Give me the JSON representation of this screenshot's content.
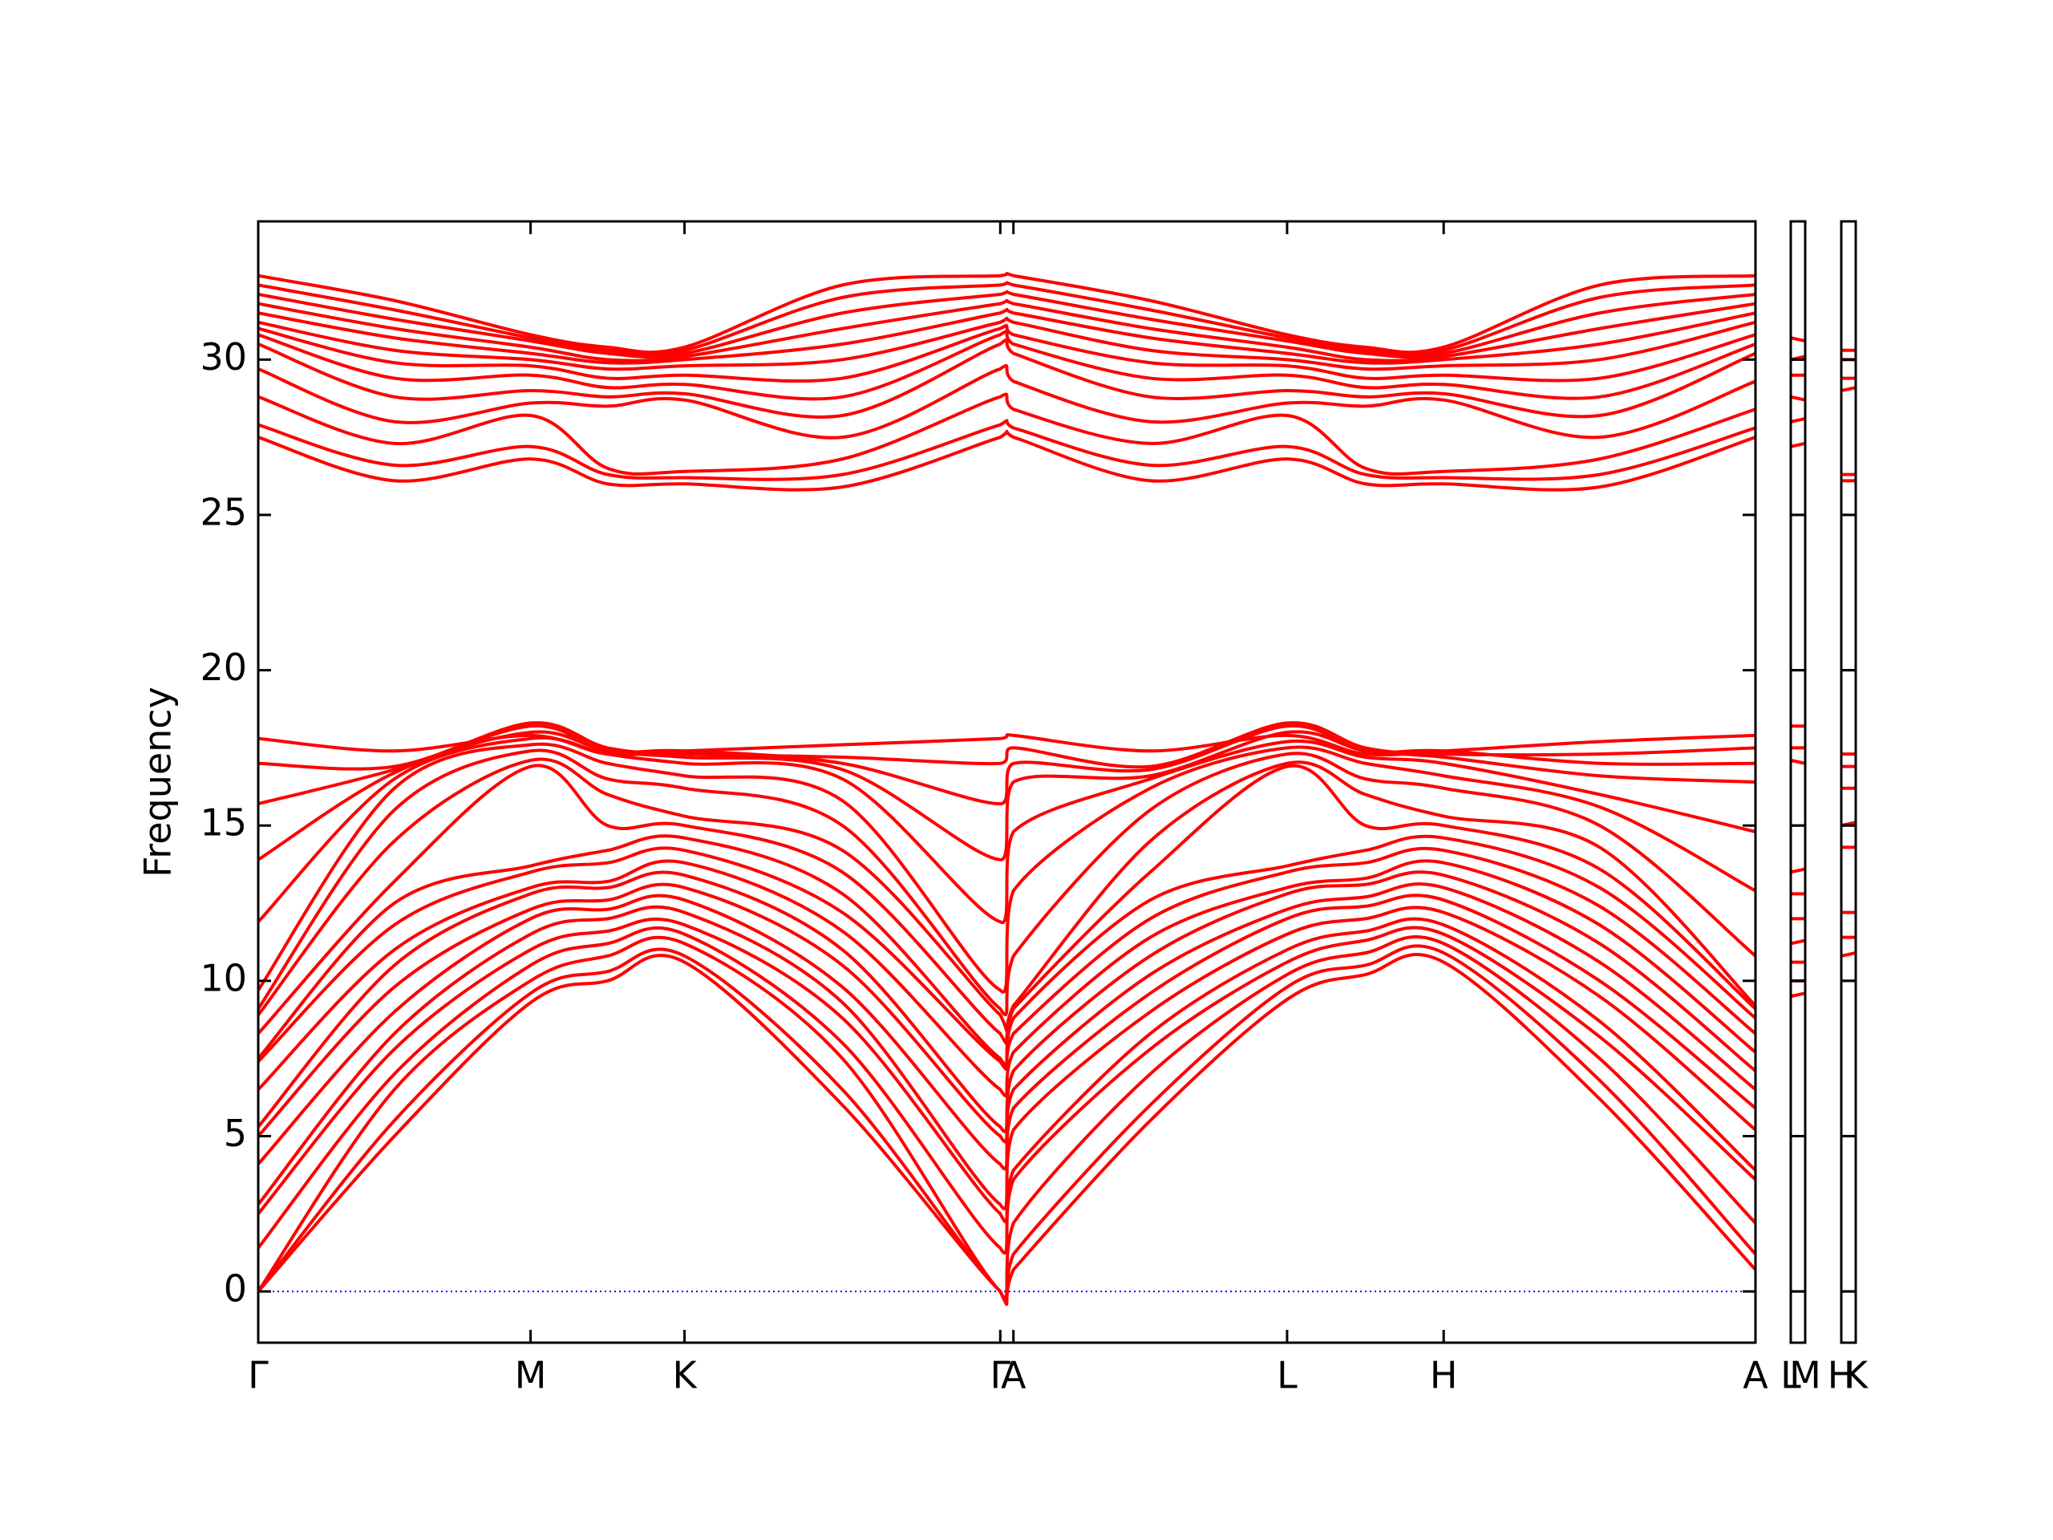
{
  "chart_data": {
    "type": "line",
    "ylabel": "Frequency",
    "color": "#ff0000",
    "zero_line_color": "#0000ff",
    "ylim": [
      -1.65,
      34.45
    ],
    "yticks": [
      0,
      5,
      10,
      15,
      20,
      25,
      30
    ],
    "panels": [
      {
        "xlim": [
          0,
          11.38
        ],
        "xticks": [
          {
            "value": 0,
            "label": "Γ"
          },
          {
            "value": 2.07,
            "label": "M"
          },
          {
            "value": 3.24,
            "label": "K"
          },
          {
            "value": 5.64,
            "label": "Γ"
          },
          {
            "value": 5.74,
            "label": "A"
          },
          {
            "value": 7.82,
            "label": "L"
          },
          {
            "value": 9.01,
            "label": "H"
          },
          {
            "value": 11.38,
            "label": "A"
          }
        ],
        "x": [
          0,
          1.035,
          2.07,
          2.655,
          3.24,
          4.44,
          5.64,
          5.74,
          6.78,
          7.82,
          8.415,
          9.01,
          10.195,
          11.38
        ],
        "series": [
          {
            "values": [
              0,
              5.0,
              9.3,
              10.0,
              10.6,
              6.0,
              0,
              0.7,
              5.5,
              9.4,
              10.2,
              10.6,
              6.2,
              0.7
            ]
          },
          {
            "values": [
              0,
              5.5,
              9.6,
              10.3,
              10.8,
              6.5,
              0,
              1.2,
              6.0,
              9.8,
              10.5,
              10.9,
              6.8,
              1.2
            ]
          },
          {
            "values": [
              0,
              6.5,
              10.0,
              10.8,
              11.2,
              7.5,
              0,
              2.2,
              7.0,
              10.2,
              10.9,
              11.2,
              7.5,
              2.2
            ]
          },
          {
            "values": [
              1.4,
              7.0,
              10.5,
              11.2,
              11.5,
              8.0,
              1.4,
              3.6,
              7.8,
              10.6,
              11.3,
              11.5,
              8.2,
              3.6
            ]
          },
          {
            "values": [
              2.5,
              7.8,
              11.0,
              11.6,
              11.8,
              8.8,
              2.5,
              3.9,
              8.3,
              11.0,
              11.6,
              11.8,
              8.7,
              3.9
            ]
          },
          {
            "values": [
              2.8,
              8.3,
              11.5,
              12.0,
              12.2,
              9.3,
              2.8,
              5.2,
              9.0,
              11.5,
              12.0,
              12.2,
              9.5,
              5.2
            ]
          },
          {
            "values": [
              4.1,
              9.0,
              12.0,
              12.3,
              12.6,
              9.8,
              4.1,
              5.9,
              9.6,
              12.0,
              12.4,
              12.6,
              10.0,
              5.9
            ]
          },
          {
            "values": [
              5.0,
              9.8,
              12.3,
              12.6,
              13.0,
              10.5,
              5.0,
              6.5,
              10.2,
              12.3,
              12.7,
              13.0,
              10.6,
              6.5
            ]
          },
          {
            "values": [
              5.3,
              10.5,
              12.8,
              13.0,
              13.4,
              11.0,
              5.3,
              7.1,
              10.8,
              12.8,
              13.1,
              13.4,
              11.2,
              7.1
            ]
          },
          {
            "values": [
              6.5,
              11.0,
              13.0,
              13.2,
              13.8,
              11.6,
              6.5,
              7.7,
              11.4,
              13.0,
              13.3,
              13.8,
              11.8,
              7.7
            ]
          },
          {
            "values": [
              7.4,
              11.8,
              13.5,
              13.8,
              14.2,
              12.2,
              7.4,
              8.3,
              12.0,
              13.5,
              13.8,
              14.2,
              12.4,
              8.3
            ]
          },
          {
            "values": [
              7.5,
              12.5,
              13.7,
              14.2,
              14.6,
              12.8,
              7.5,
              8.8,
              12.6,
              13.7,
              14.2,
              14.6,
              13.0,
              8.8
            ]
          },
          {
            "values": [
              8.3,
              13.2,
              16.9,
              15.0,
              15.0,
              13.5,
              8.3,
              9.1,
              13.5,
              16.9,
              15.0,
              15.0,
              13.6,
              9.1
            ]
          },
          {
            "values": [
              8.9,
              14.5,
              17.1,
              16.0,
              15.3,
              14.2,
              8.9,
              9.2,
              14.5,
              17.0,
              16.0,
              15.3,
              14.3,
              9.2
            ]
          },
          {
            "values": [
              9.1,
              15.5,
              17.4,
              16.5,
              16.2,
              15.0,
              9.1,
              10.8,
              15.5,
              17.3,
              16.5,
              16.2,
              15.0,
              10.8
            ]
          },
          {
            "values": [
              9.7,
              16.2,
              17.6,
              17.0,
              16.6,
              15.8,
              9.7,
              12.9,
              16.2,
              17.5,
              17.0,
              16.6,
              15.6,
              12.9
            ]
          },
          {
            "values": [
              11.9,
              16.5,
              17.8,
              17.3,
              17.0,
              16.5,
              11.9,
              14.8,
              16.5,
              17.7,
              17.2,
              17.0,
              16.0,
              14.8
            ]
          },
          {
            "values": [
              13.9,
              16.7,
              18.0,
              17.4,
              17.2,
              16.8,
              13.9,
              16.4,
              16.6,
              18.0,
              17.4,
              17.2,
              16.6,
              16.4
            ]
          },
          {
            "values": [
              15.7,
              16.8,
              18.2,
              17.4,
              17.4,
              17.0,
              15.7,
              17.0,
              16.8,
              18.2,
              17.4,
              17.4,
              17.0,
              17.0
            ]
          },
          {
            "values": [
              17.0,
              16.9,
              18.3,
              17.5,
              17.3,
              17.2,
              17.0,
              17.5,
              16.9,
              18.3,
              17.5,
              17.3,
              17.3,
              17.5
            ]
          },
          {
            "values": [
              17.8,
              17.4,
              17.9,
              17.3,
              17.4,
              17.6,
              17.8,
              17.9,
              17.4,
              17.9,
              17.3,
              17.4,
              17.7,
              17.9
            ]
          },
          {
            "values": [
              27.5,
              26.1,
              26.8,
              26.0,
              26.0,
              25.9,
              27.5,
              27.5,
              26.1,
              26.8,
              26.0,
              26.0,
              25.9,
              27.5
            ]
          },
          {
            "values": [
              27.9,
              26.6,
              27.2,
              26.3,
              26.2,
              26.3,
              27.9,
              27.8,
              26.6,
              27.2,
              26.3,
              26.2,
              26.3,
              27.8
            ]
          },
          {
            "values": [
              28.8,
              27.3,
              28.2,
              26.5,
              26.4,
              26.8,
              28.8,
              28.4,
              27.3,
              28.2,
              26.5,
              26.4,
              26.8,
              28.4
            ]
          },
          {
            "values": [
              29.7,
              28.0,
              28.6,
              28.5,
              28.7,
              27.5,
              29.7,
              29.3,
              28.0,
              28.6,
              28.5,
              28.7,
              27.5,
              29.3
            ]
          },
          {
            "values": [
              30.5,
              28.8,
              29.0,
              28.8,
              28.9,
              28.2,
              30.5,
              30.2,
              28.8,
              29.0,
              28.8,
              28.9,
              28.2,
              30.2
            ]
          },
          {
            "values": [
              30.8,
              29.4,
              29.5,
              29.1,
              29.2,
              28.8,
              30.8,
              30.5,
              29.4,
              29.5,
              29.1,
              29.2,
              28.8,
              30.5
            ]
          },
          {
            "values": [
              31.0,
              29.9,
              29.8,
              29.4,
              29.5,
              29.4,
              31.0,
              30.8,
              29.9,
              29.8,
              29.4,
              29.5,
              29.4,
              30.8
            ]
          },
          {
            "values": [
              31.2,
              30.3,
              30.0,
              29.7,
              29.8,
              30.0,
              31.2,
              31.2,
              30.3,
              30.0,
              29.7,
              29.8,
              30.0,
              31.2
            ]
          },
          {
            "values": [
              31.5,
              30.7,
              30.2,
              29.9,
              30.0,
              30.5,
              31.5,
              31.5,
              30.7,
              30.2,
              29.9,
              30.0,
              30.5,
              31.5
            ]
          },
          {
            "values": [
              31.8,
              31.0,
              30.4,
              30.0,
              30.1,
              31.0,
              31.8,
              31.8,
              31.0,
              30.4,
              30.0,
              30.1,
              31.0,
              31.8
            ]
          },
          {
            "values": [
              32.1,
              31.3,
              30.6,
              30.2,
              30.2,
              31.5,
              32.1,
              32.1,
              31.3,
              30.6,
              30.2,
              30.2,
              31.5,
              32.1
            ]
          },
          {
            "values": [
              32.4,
              31.6,
              30.7,
              30.3,
              30.3,
              32.0,
              32.4,
              32.4,
              31.6,
              30.7,
              30.3,
              30.3,
              32.0,
              32.4
            ]
          },
          {
            "values": [
              32.7,
              31.9,
              30.8,
              30.4,
              30.4,
              32.4,
              32.7,
              32.7,
              31.9,
              30.8,
              30.4,
              30.4,
              32.4,
              32.7
            ]
          }
        ]
      },
      {
        "xlim": [
          0,
          0.11
        ],
        "xticks": [
          {
            "value": 0,
            "label": "L"
          },
          {
            "value": 0.11,
            "label": "M"
          }
        ],
        "x": [
          0,
          0.11
        ],
        "series": [
          {
            "values": [
              9.5,
              9.6
            ]
          },
          {
            "values": [
              10.0,
              10.0
            ]
          },
          {
            "values": [
              10.6,
              10.6
            ]
          },
          {
            "values": [
              11.2,
              11.3
            ]
          },
          {
            "values": [
              12.0,
              12.0
            ]
          },
          {
            "values": [
              12.8,
              12.8
            ]
          },
          {
            "values": [
              13.5,
              13.6
            ]
          },
          {
            "values": [
              17.1,
              17.0
            ]
          },
          {
            "values": [
              17.5,
              17.5
            ]
          },
          {
            "values": [
              18.2,
              18.2
            ]
          },
          {
            "values": [
              27.2,
              27.3
            ]
          },
          {
            "values": [
              28.0,
              28.1
            ]
          },
          {
            "values": [
              28.8,
              28.7
            ]
          },
          {
            "values": [
              29.5,
              29.5
            ]
          },
          {
            "values": [
              30.0,
              30.1
            ]
          },
          {
            "values": [
              30.7,
              30.6
            ]
          }
        ]
      },
      {
        "xlim": [
          0,
          0.11
        ],
        "xticks": [
          {
            "value": 0,
            "label": "H"
          },
          {
            "value": 0.11,
            "label": "K"
          }
        ],
        "x": [
          0,
          0.11
        ],
        "series": [
          {
            "values": [
              10.8,
              10.9
            ]
          },
          {
            "values": [
              11.4,
              11.4
            ]
          },
          {
            "values": [
              12.2,
              12.2
            ]
          },
          {
            "values": [
              14.3,
              14.3
            ]
          },
          {
            "values": [
              15.0,
              15.1
            ]
          },
          {
            "values": [
              16.2,
              16.2
            ]
          },
          {
            "values": [
              16.9,
              16.9
            ]
          },
          {
            "values": [
              17.3,
              17.3
            ]
          },
          {
            "values": [
              26.1,
              26.1
            ]
          },
          {
            "values": [
              26.3,
              26.3
            ]
          },
          {
            "values": [
              29.0,
              29.1
            ]
          },
          {
            "values": [
              29.4,
              29.4
            ]
          },
          {
            "values": [
              30.0,
              30.0
            ]
          },
          {
            "values": [
              30.3,
              30.3
            ]
          }
        ]
      }
    ]
  }
}
